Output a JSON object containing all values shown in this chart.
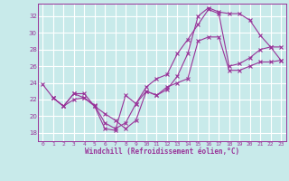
{
  "background_color": "#c8eaea",
  "grid_color": "#ffffff",
  "line_color": "#993399",
  "xlabel": "Windchill (Refroidissement éolien,°C)",
  "xlim": [
    -0.5,
    23.5
  ],
  "ylim": [
    17.0,
    33.5
  ],
  "yticks": [
    18,
    20,
    22,
    24,
    26,
    28,
    30,
    32
  ],
  "xticks": [
    0,
    1,
    2,
    3,
    4,
    5,
    6,
    7,
    8,
    9,
    10,
    11,
    12,
    13,
    14,
    15,
    16,
    17,
    18,
    19,
    20,
    21,
    22,
    23
  ],
  "line1_x": [
    0,
    1,
    2,
    3,
    4,
    5,
    6,
    7,
    8,
    9,
    10,
    11,
    12,
    13,
    14,
    15,
    16,
    17,
    18,
    19,
    20,
    21,
    22,
    23
  ],
  "line1_y": [
    23.8,
    22.2,
    21.2,
    22.7,
    22.2,
    21.2,
    20.3,
    19.5,
    18.5,
    19.5,
    23.0,
    22.5,
    23.2,
    24.8,
    27.5,
    32.0,
    33.0,
    32.5,
    32.3,
    32.3,
    31.5,
    29.7,
    28.3,
    26.7
  ],
  "line2_x": [
    1,
    2,
    3,
    4,
    5,
    6,
    7,
    8,
    9,
    10,
    11,
    12,
    13,
    14,
    15,
    16,
    17,
    18,
    19,
    20,
    21,
    22,
    23
  ],
  "line2_y": [
    22.2,
    21.2,
    22.7,
    22.7,
    21.2,
    18.5,
    18.3,
    22.5,
    21.5,
    23.5,
    24.5,
    25.0,
    27.5,
    29.2,
    31.0,
    32.8,
    32.3,
    26.0,
    26.3,
    27.0,
    28.0,
    28.3,
    28.3
  ],
  "line3_x": [
    1,
    2,
    3,
    4,
    5,
    6,
    7,
    8,
    9,
    10,
    11,
    12,
    13,
    14,
    15,
    16,
    17,
    18,
    19,
    20,
    21,
    22,
    23
  ],
  "line3_y": [
    22.2,
    21.2,
    22.0,
    22.2,
    21.3,
    19.2,
    18.5,
    19.2,
    21.5,
    23.0,
    22.5,
    23.5,
    24.0,
    24.5,
    29.0,
    29.5,
    29.5,
    25.5,
    25.5,
    26.0,
    26.5,
    26.5,
    26.7
  ]
}
